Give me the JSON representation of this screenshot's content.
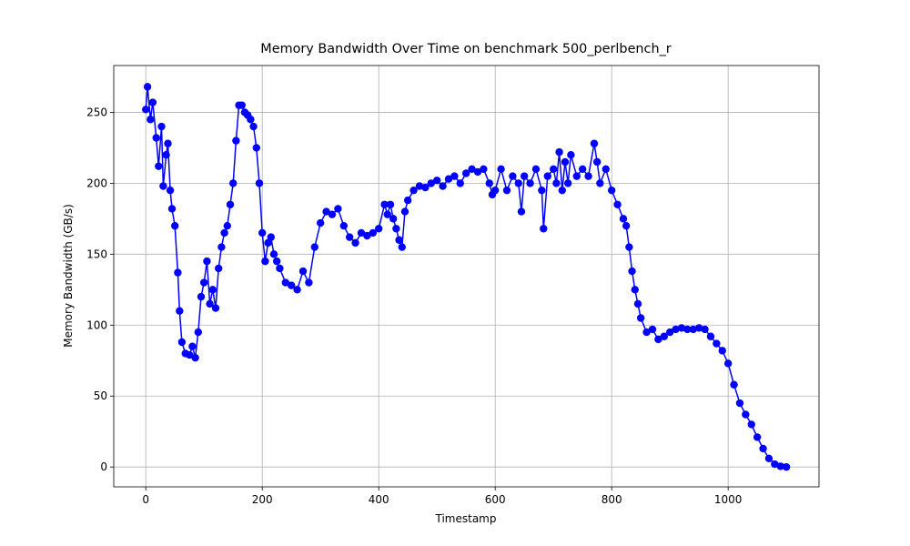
{
  "chart_data": {
    "type": "line",
    "title": "Memory Bandwidth Over Time on benchmark 500_perlbench_r",
    "x_label": "Timestamp",
    "y_label": "Memory Bandwidth (GB/s)",
    "color": "#0000ff",
    "grid": true,
    "xlim": [
      -55,
      1156
    ],
    "ylim": [
      -14,
      283
    ],
    "xticks": [
      0,
      200,
      400,
      600,
      800,
      1000
    ],
    "yticks": [
      0,
      50,
      100,
      150,
      200,
      250
    ],
    "x": [
      0,
      3,
      8,
      12,
      18,
      22,
      27,
      30,
      35,
      38,
      42,
      45,
      50,
      55,
      58,
      62,
      68,
      75,
      80,
      85,
      90,
      95,
      100,
      105,
      110,
      115,
      120,
      125,
      130,
      135,
      140,
      145,
      150,
      155,
      160,
      165,
      170,
      175,
      180,
      185,
      190,
      195,
      200,
      205,
      210,
      215,
      220,
      225,
      230,
      240,
      250,
      260,
      270,
      280,
      290,
      300,
      310,
      320,
      330,
      340,
      350,
      360,
      370,
      380,
      390,
      400,
      410,
      415,
      420,
      425,
      430,
      435,
      440,
      445,
      450,
      460,
      470,
      480,
      490,
      500,
      510,
      520,
      530,
      540,
      550,
      560,
      570,
      580,
      590,
      595,
      600,
      610,
      620,
      630,
      640,
      645,
      650,
      660,
      670,
      680,
      683,
      690,
      700,
      705,
      710,
      715,
      720,
      725,
      730,
      740,
      750,
      760,
      770,
      775,
      780,
      790,
      800,
      810,
      820,
      825,
      830,
      835,
      840,
      845,
      850,
      860,
      870,
      880,
      890,
      900,
      910,
      920,
      930,
      940,
      950,
      960,
      970,
      980,
      990,
      1000,
      1010,
      1020,
      1030,
      1040,
      1050,
      1060,
      1070,
      1080,
      1090,
      1100
    ],
    "values": [
      252,
      268,
      245,
      257,
      232,
      212,
      240,
      198,
      220,
      228,
      195,
      182,
      170,
      137,
      110,
      88,
      80,
      79,
      85,
      77,
      95,
      120,
      130,
      145,
      115,
      125,
      112,
      140,
      155,
      165,
      170,
      185,
      200,
      230,
      255,
      255,
      250,
      248,
      245,
      240,
      225,
      200,
      165,
      145,
      158,
      162,
      150,
      145,
      140,
      130,
      128,
      125,
      138,
      130,
      155,
      172,
      180,
      178,
      182,
      170,
      162,
      158,
      165,
      163,
      165,
      168,
      185,
      178,
      185,
      175,
      168,
      160,
      155,
      180,
      188,
      195,
      198,
      197,
      200,
      202,
      198,
      203,
      205,
      200,
      207,
      210,
      208,
      210,
      200,
      192,
      195,
      210,
      195,
      205,
      200,
      180,
      205,
      200,
      210,
      195,
      168,
      205,
      210,
      200,
      222,
      195,
      215,
      200,
      220,
      205,
      210,
      205,
      228,
      215,
      200,
      210,
      195,
      185,
      175,
      170,
      155,
      138,
      125,
      115,
      105,
      95,
      97,
      90,
      92,
      95,
      97,
      98,
      97,
      97,
      98,
      97,
      92,
      87,
      82,
      73,
      58,
      45,
      37,
      30,
      21,
      13,
      6,
      2,
      0.5,
      0
    ]
  }
}
